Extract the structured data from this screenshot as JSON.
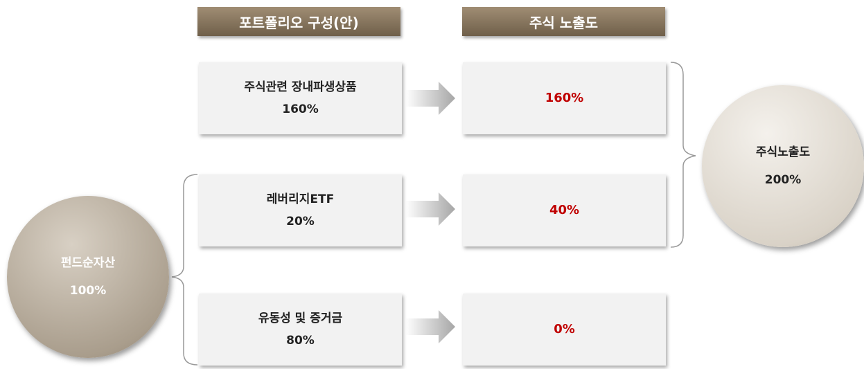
{
  "headers": {
    "portfolio": "포트폴리오 구성(안)",
    "exposure": "주식 노출도"
  },
  "fund": {
    "label": "펀드순자산",
    "value": "100%"
  },
  "total": {
    "label": "주식노출도",
    "value": "200%"
  },
  "rows": [
    {
      "name": "주식관련 장내파생상품",
      "weight": "160%",
      "exposure": "160%"
    },
    {
      "name": "레버리지ETF",
      "weight": "20%",
      "exposure": "40%"
    },
    {
      "name": "유동성 및 증거금",
      "weight": "80%",
      "exposure": "0%"
    }
  ]
}
